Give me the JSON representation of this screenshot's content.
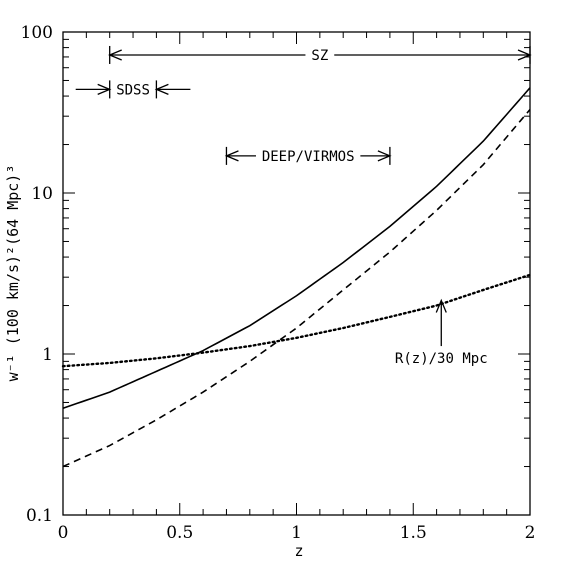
{
  "chart_data": {
    "type": "line",
    "xlabel": "z",
    "ylabel": "w⁻¹ (100 km/s)²(64 Mpc)³",
    "y_scale": "log",
    "xlim": [
      0,
      2
    ],
    "ylim": [
      0.1,
      100
    ],
    "x_ticks": [
      0,
      0.5,
      1,
      1.5,
      2
    ],
    "x_tick_labels": [
      "0",
      "0.5",
      "1",
      "1.5",
      "2"
    ],
    "y_ticks": [
      0.1,
      1,
      10,
      100
    ],
    "y_tick_labels": [
      "0.1",
      "1",
      "10",
      "100"
    ],
    "grid": false,
    "series": [
      {
        "style": "solid",
        "x": [
          0,
          0.2,
          0.4,
          0.6,
          0.8,
          1.0,
          1.2,
          1.4,
          1.6,
          1.8,
          2.0
        ],
        "y": [
          0.46,
          0.58,
          0.78,
          1.05,
          1.5,
          2.3,
          3.7,
          6.2,
          11,
          21,
          45
        ]
      },
      {
        "style": "dashed",
        "x": [
          0,
          0.2,
          0.4,
          0.6,
          0.8,
          1.0,
          1.2,
          1.4,
          1.6,
          1.8,
          2.0
        ],
        "y": [
          0.2,
          0.27,
          0.39,
          0.58,
          0.9,
          1.45,
          2.5,
          4.3,
          7.8,
          15,
          33
        ]
      },
      {
        "style": "dotted",
        "x": [
          0,
          0.2,
          0.4,
          0.6,
          0.8,
          1.0,
          1.2,
          1.4,
          1.6,
          1.8,
          2.0
        ],
        "y": [
          0.84,
          0.88,
          0.94,
          1.02,
          1.12,
          1.26,
          1.45,
          1.7,
          2.0,
          2.5,
          3.1
        ]
      }
    ],
    "ranges": [
      {
        "label": "SZ",
        "x0": 0.2,
        "x1": 2.0,
        "y": 72
      },
      {
        "label": "SDSS",
        "x0": 0.2,
        "x1": 0.4,
        "y": 44
      },
      {
        "label": "DEEP/VIRMOS",
        "x0": 0.7,
        "x1": 1.4,
        "y": 17
      }
    ],
    "annotation": {
      "label": "R(z)/30 Mpc",
      "x": 1.62,
      "arrow_from_y": 1.12,
      "arrow_to_y": 2.15
    }
  }
}
